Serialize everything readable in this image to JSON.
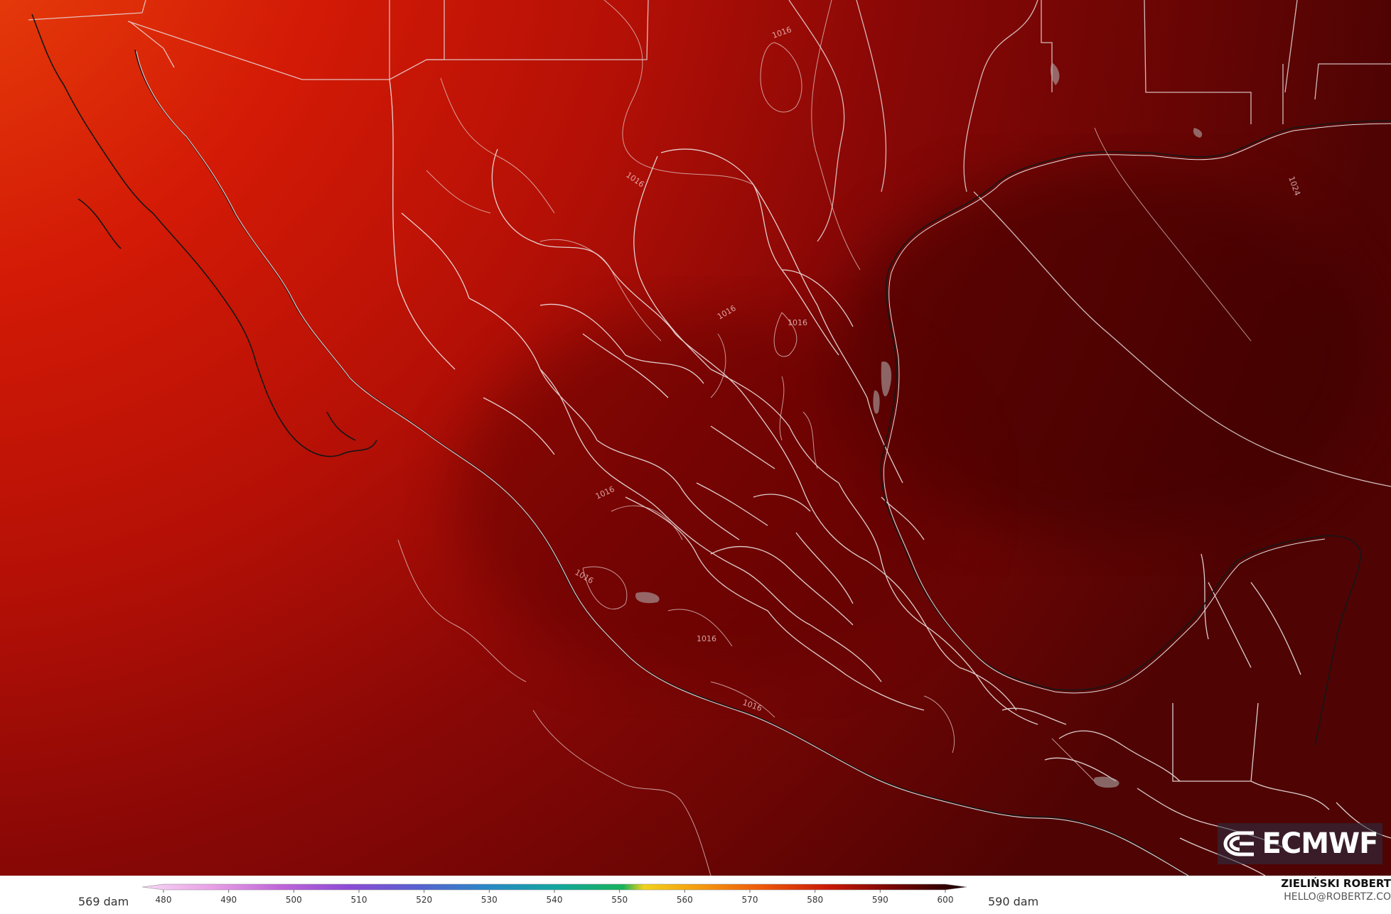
{
  "map": {
    "region": "Mexico, Gulf of Mexico and southern United States",
    "field_min_label": "569 dam",
    "field_max_label": "590 dam",
    "contour_labels": [
      "1016",
      "1016",
      "1016",
      "1016",
      "1016",
      "1016",
      "1016",
      "1016",
      "1024"
    ],
    "colors": {
      "low_orange": "#ee4a0c",
      "mid_red": "#d31a06",
      "dark_red": "#8a0806",
      "deep_red": "#4f0303",
      "boundary_line": "#e8e0e0",
      "coast_line": "#1a1a1a"
    }
  },
  "logo": {
    "icon": "ecmwf-logo-icon",
    "text": "ECMWF"
  },
  "colorbar": {
    "ticks": [
      "480",
      "490",
      "500",
      "510",
      "520",
      "530",
      "540",
      "550",
      "560",
      "570",
      "580",
      "590",
      "600"
    ],
    "stops": [
      {
        "value": 480,
        "color": "#f7d8f6"
      },
      {
        "value": 490,
        "color": "#e9a0e6"
      },
      {
        "value": 500,
        "color": "#c065d8"
      },
      {
        "value": 510,
        "color": "#8d4bd6"
      },
      {
        "value": 520,
        "color": "#5861d0"
      },
      {
        "value": 530,
        "color": "#2a87c6"
      },
      {
        "value": 540,
        "color": "#12a6a0"
      },
      {
        "value": 550,
        "color": "#16b25a"
      },
      {
        "value": 553,
        "color": "#f2d21a"
      },
      {
        "value": 560,
        "color": "#f5a20f"
      },
      {
        "value": 570,
        "color": "#ee5a0a"
      },
      {
        "value": 580,
        "color": "#c81806"
      },
      {
        "value": 590,
        "color": "#700404"
      },
      {
        "value": 600,
        "color": "#150000"
      }
    ]
  },
  "credit": {
    "name": "ZIELIŃSKI ROBERT",
    "email": "HELLO@ROBERTZ.CO"
  }
}
